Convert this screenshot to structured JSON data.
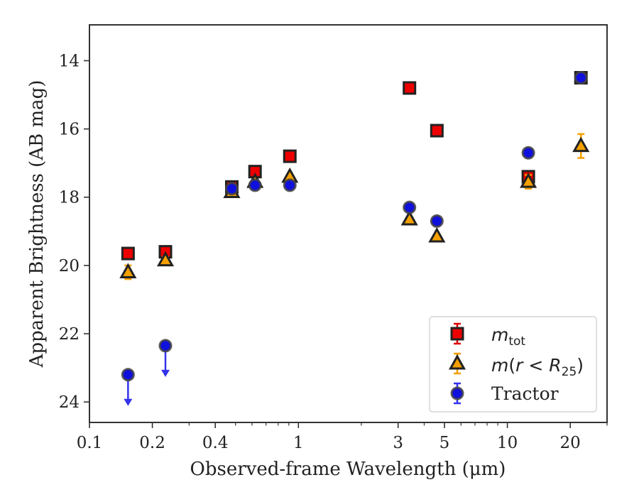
{
  "chart_data": {
    "type": "scatter",
    "xscale": "log",
    "yscale": "linear",
    "yinverted": true,
    "xlim": [
      0.1,
      30
    ],
    "ylim": [
      24.6,
      12.95
    ],
    "xlabel": "Observed-frame Wavelength (μm)",
    "ylabel": "Apparent Brightness (AB mag)",
    "xticks": [
      {
        "value": 0.1,
        "label": "0.1"
      },
      {
        "value": 0.2,
        "label": "0.2"
      },
      {
        "value": 0.4,
        "label": "0.4"
      },
      {
        "value": 1,
        "label": "1"
      },
      {
        "value": 3,
        "label": "3"
      },
      {
        "value": 5,
        "label": "5"
      },
      {
        "value": 10,
        "label": "10"
      },
      {
        "value": 20,
        "label": "20"
      }
    ],
    "yticks": [
      {
        "value": 14,
        "label": "14"
      },
      {
        "value": 16,
        "label": "16"
      },
      {
        "value": 18,
        "label": "18"
      },
      {
        "value": 20,
        "label": "20"
      },
      {
        "value": 22,
        "label": "22"
      },
      {
        "value": 24,
        "label": "24"
      }
    ],
    "legend_position": "lower-right",
    "series": [
      {
        "name": "m_tot",
        "marker": "square",
        "color": "#ee0000",
        "errcolor": "#dd0000",
        "points": [
          {
            "x": 0.153,
            "y": 19.65,
            "err": 0.05
          },
          {
            "x": 0.231,
            "y": 19.6,
            "err": 0.05
          },
          {
            "x": 0.48,
            "y": 17.7,
            "err": 0.05
          },
          {
            "x": 0.62,
            "y": 17.25,
            "err": 0.05
          },
          {
            "x": 0.91,
            "y": 16.8,
            "err": 0.05
          },
          {
            "x": 3.4,
            "y": 14.8,
            "err": 0.05
          },
          {
            "x": 4.6,
            "y": 16.05,
            "err": 0.05
          },
          {
            "x": 12.6,
            "y": 17.4,
            "err": 0.05
          },
          {
            "x": 22.5,
            "y": 14.5,
            "err": 0.05
          }
        ]
      },
      {
        "name": "m(r < R25)",
        "marker": "triangle",
        "color": "#f5a000",
        "errcolor": "#f5a000",
        "points": [
          {
            "x": 0.153,
            "y": 20.2,
            "err": 0.2
          },
          {
            "x": 0.231,
            "y": 19.85,
            "err": 0.1
          },
          {
            "x": 0.48,
            "y": 17.85,
            "err": 0.05
          },
          {
            "x": 0.62,
            "y": 17.55,
            "err": 0.05
          },
          {
            "x": 0.91,
            "y": 17.4,
            "err": 0.05
          },
          {
            "x": 3.4,
            "y": 18.65,
            "err": 0.05
          },
          {
            "x": 4.6,
            "y": 19.15,
            "err": 0.05
          },
          {
            "x": 12.6,
            "y": 17.55,
            "err": 0.2
          },
          {
            "x": 22.5,
            "y": 16.5,
            "err": 0.35
          }
        ]
      },
      {
        "name": "Tractor",
        "marker": "circle",
        "color": "#1010dd",
        "errcolor": "#3333ee",
        "points": [
          {
            "x": 0.153,
            "y": 23.2,
            "err": 0,
            "upper_limit": true
          },
          {
            "x": 0.231,
            "y": 22.35,
            "err": 0,
            "upper_limit": true
          },
          {
            "x": 0.48,
            "y": 17.75,
            "err": 0.05
          },
          {
            "x": 0.62,
            "y": 17.65,
            "err": 0.05
          },
          {
            "x": 0.91,
            "y": 17.65,
            "err": 0.05
          },
          {
            "x": 3.4,
            "y": 18.3,
            "err": 0.05
          },
          {
            "x": 4.6,
            "y": 18.7,
            "err": 0.05
          },
          {
            "x": 12.6,
            "y": 16.7,
            "err": 0.05
          },
          {
            "x": 22.5,
            "y": 14.5,
            "err": 0.05
          }
        ]
      }
    ]
  },
  "legend": {
    "mtot": {
      "base": "m",
      "sub": "tot"
    },
    "mr": {
      "pre": "m",
      "mid1": "(",
      "r": "r",
      "lt": " < ",
      "R": "R",
      "sub": "25",
      "close": ")"
    },
    "tractor": "Tractor"
  }
}
